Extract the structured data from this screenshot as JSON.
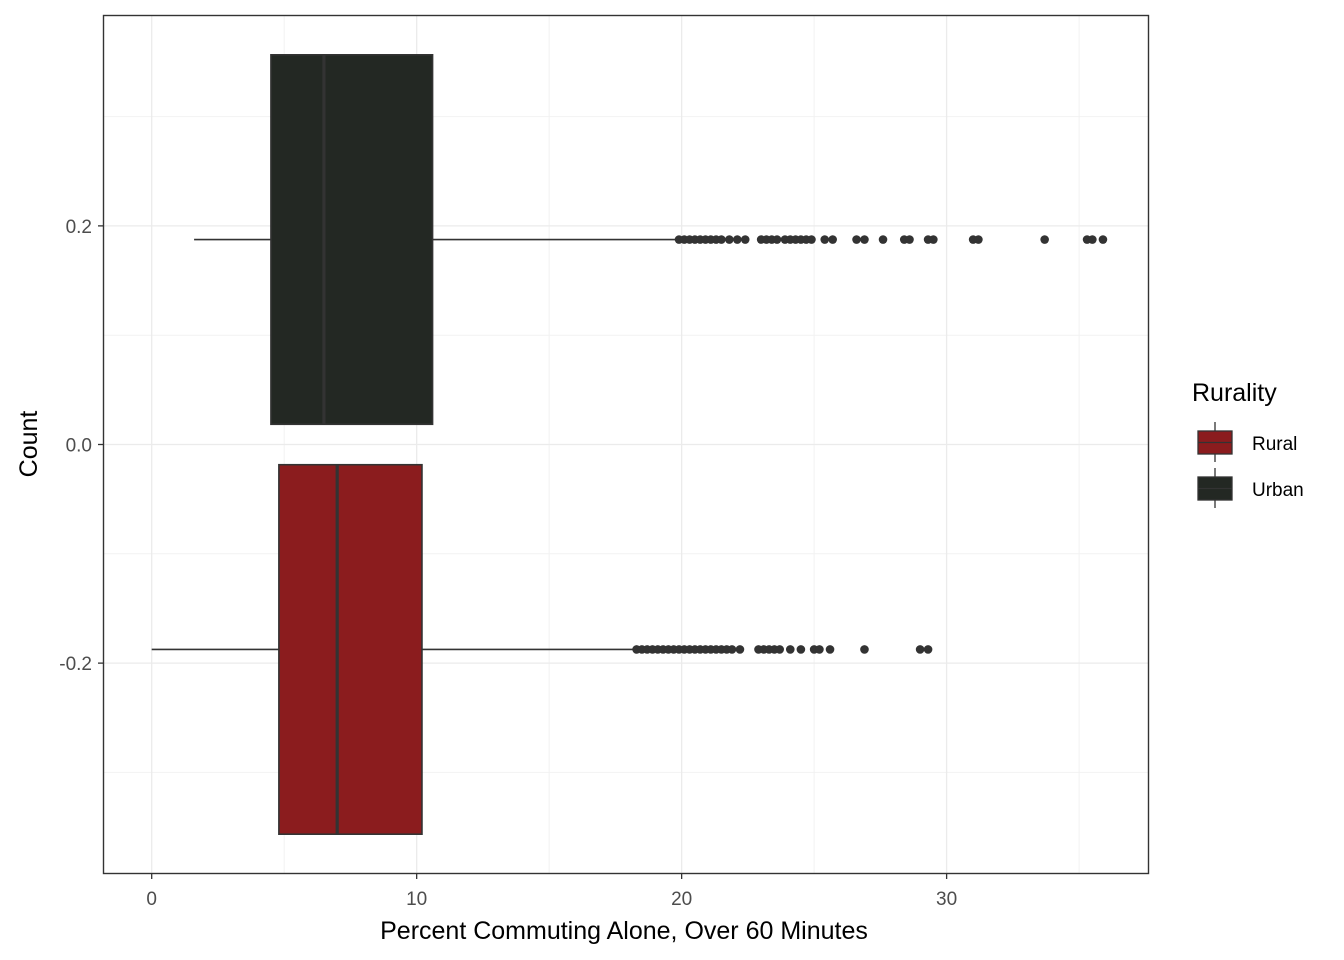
{
  "chart_data": {
    "type": "boxplot",
    "orientation": "horizontal",
    "xlabel": "Percent Commuting Alone, Over 60 Minutes",
    "ylabel": "Count",
    "xlim": [
      -1.8,
      37.6
    ],
    "ylim": [
      -0.392,
      0.392
    ],
    "x_ticks": [
      0,
      10,
      20,
      30
    ],
    "x_tick_labels": [
      "0",
      "10",
      "20",
      "30"
    ],
    "y_ticks": [
      -0.2,
      0.0,
      0.2
    ],
    "y_tick_labels": [
      "-0.2",
      "0.0",
      "0.2"
    ],
    "grid": true,
    "legend": {
      "title": "Rurality",
      "position": "right",
      "entries": [
        {
          "label": "Rural",
          "color": "#8B1C1E"
        },
        {
          "label": "Urban",
          "color": "#232823"
        }
      ]
    },
    "series": [
      {
        "name": "Urban",
        "color": "#232823",
        "y_center": 0.1875,
        "y_band": [
          0.0185,
          0.3565
        ],
        "whisker_low": 1.6,
        "q1": 4.5,
        "median": 6.5,
        "q3": 10.6,
        "whisker_high": 19.9,
        "outliers": [
          19.9,
          20.1,
          20.3,
          20.5,
          20.7,
          20.9,
          21.1,
          21.3,
          21.5,
          21.8,
          22.1,
          22.4,
          23.0,
          23.2,
          23.4,
          23.6,
          23.9,
          24.1,
          24.3,
          24.5,
          24.7,
          24.9,
          25.4,
          25.7,
          26.6,
          26.9,
          27.6,
          28.4,
          28.6,
          29.3,
          29.5,
          31.0,
          31.2,
          33.7,
          35.3,
          35.5,
          35.9
        ]
      },
      {
        "name": "Rural",
        "color": "#8B1C1E",
        "y_center": -0.1875,
        "y_band": [
          -0.3565,
          -0.0185
        ],
        "whisker_low": 0.0,
        "q1": 4.8,
        "median": 7.0,
        "q3": 10.2,
        "whisker_high": 18.3,
        "outliers": [
          18.3,
          18.5,
          18.7,
          18.9,
          19.1,
          19.3,
          19.5,
          19.7,
          19.9,
          20.1,
          20.3,
          20.5,
          20.7,
          20.9,
          21.1,
          21.3,
          21.5,
          21.7,
          21.9,
          22.2,
          22.9,
          23.1,
          23.3,
          23.5,
          23.7,
          24.1,
          24.5,
          25.0,
          25.2,
          25.6,
          26.9,
          29.0,
          29.3
        ]
      }
    ]
  }
}
